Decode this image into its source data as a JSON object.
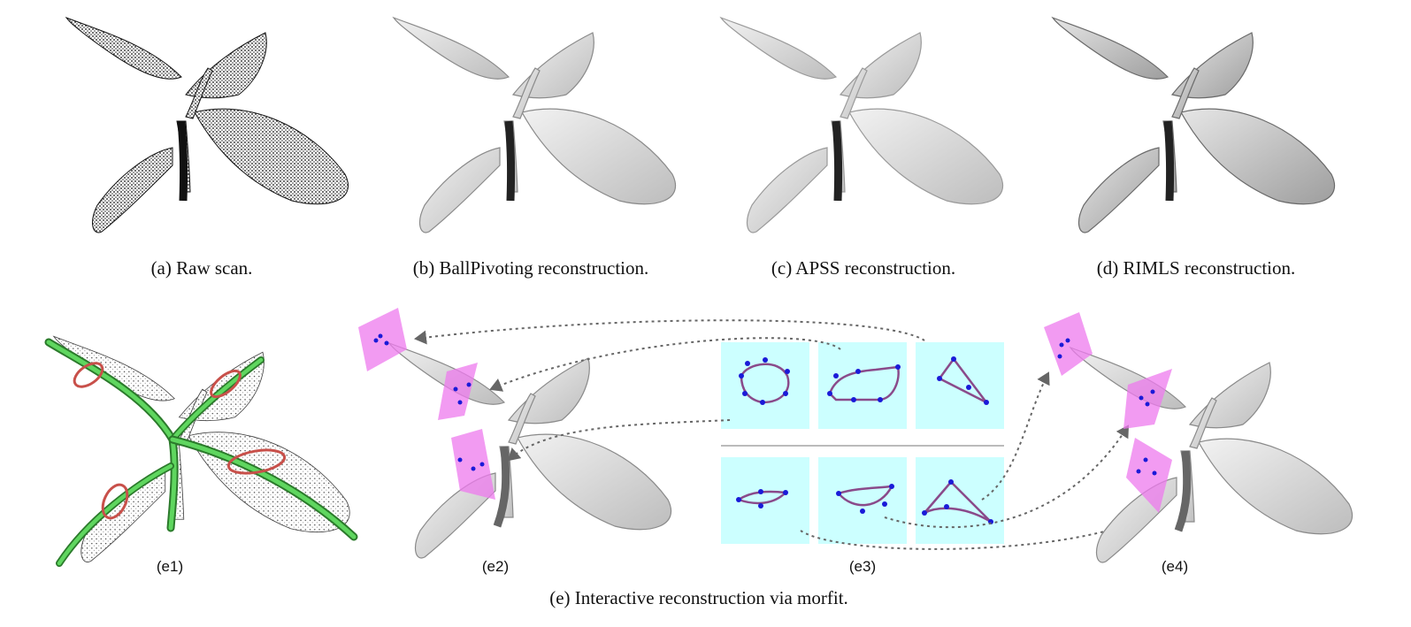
{
  "figure": {
    "captions": {
      "a": "(a)  Raw scan.",
      "b": "(b)  BallPivoting reconstruction.",
      "c": "(c)  APSS reconstruction.",
      "d": "(d)  RIMLS reconstruction.",
      "e": "(e)  Interactive reconstruction via morfit."
    },
    "sublabels": {
      "e1": "(e1)",
      "e2": "(e2)",
      "e3": "(e3)",
      "e4": "(e4)"
    },
    "colors": {
      "pointcloud": "#111111",
      "mesh_fill": "#d8d8d8",
      "mesh_stroke": "#8a8a8a",
      "skeleton": "#4fc94f",
      "profile_red": "#c8504a",
      "plane_magenta": "#ee7aee",
      "panel_cyan": "#ccffff",
      "point_blue": "#1a1ad8",
      "curve_purple": "#8a4a8a",
      "arrow_gray": "#666666"
    }
  }
}
